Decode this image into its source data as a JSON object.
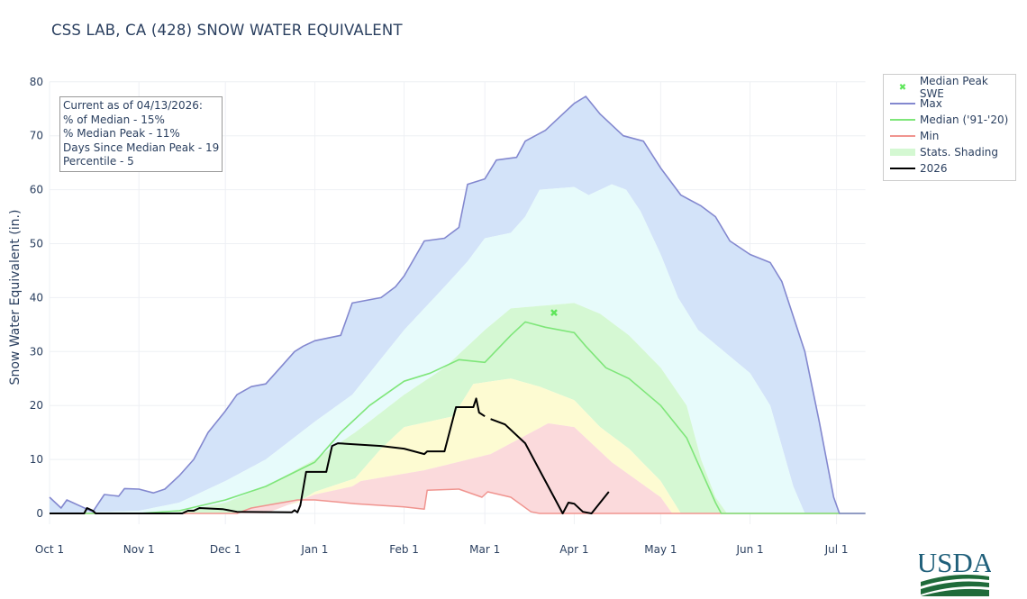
{
  "title": "CSS LAB, CA (428) SNOW WATER EQUIVALENT",
  "info_box": {
    "lines": [
      "Current as of 04/13/2026:",
      "% of Median - 15%",
      "% Median Peak - 11%",
      "Days Since Median Peak - 19",
      "Percentile - 5"
    ]
  },
  "legend": {
    "placement": "right",
    "items": [
      {
        "label": "Median Peak SWE",
        "color": "#5ee65a",
        "kind": "marker-x"
      },
      {
        "label": "Max",
        "color": "#8388cf",
        "kind": "line"
      },
      {
        "label": "Median ('91-'20)",
        "color": "#7fe67a",
        "kind": "line"
      },
      {
        "label": "Min",
        "color": "#f0948f",
        "kind": "line"
      },
      {
        "label": "Stats. Shading",
        "color": "#d4f8d2",
        "kind": "band"
      },
      {
        "label": "2026",
        "color": "#000000",
        "kind": "line"
      }
    ]
  },
  "logo": "USDA",
  "chart_data": {
    "type": "line",
    "title": "CSS LAB, CA (428) SNOW WATER EQUIVALENT",
    "xlabel": "",
    "ylabel": "Snow Water Equivalent (in.)",
    "x_range": [
      "10-01",
      "07-11"
    ],
    "ylim": [
      0,
      80
    ],
    "y_ticks": [
      0,
      10,
      20,
      30,
      40,
      50,
      60,
      70,
      80
    ],
    "x_ticks": [
      {
        "date": "10-01",
        "label": "Oct  1"
      },
      {
        "date": "11-01",
        "label": "Nov  1"
      },
      {
        "date": "12-01",
        "label": "Dec  1"
      },
      {
        "date": "01-01",
        "label": "Jan  1"
      },
      {
        "date": "02-01",
        "label": "Feb  1"
      },
      {
        "date": "03-01",
        "label": "Mar  1"
      },
      {
        "date": "04-01",
        "label": "Apr  1"
      },
      {
        "date": "05-01",
        "label": "May  1"
      },
      {
        "date": "06-01",
        "label": "Jun  1"
      },
      {
        "date": "07-01",
        "label": "Jul  1"
      }
    ],
    "grid": true,
    "band_colors": {
      "p90_max": "#d3e3f9",
      "p70_p90": "#e7fbfb",
      "p30_p70": "#d5f8d3",
      "p10_p30": "#fdfbd2",
      "min_p10": "#fbdadc"
    },
    "max": [
      [
        "10-01",
        3
      ],
      [
        "10-05",
        1
      ],
      [
        "10-07",
        2.5
      ],
      [
        "10-16",
        0.3
      ],
      [
        "10-20",
        3.5
      ],
      [
        "10-25",
        3.2
      ],
      [
        "10-27",
        4.6
      ],
      [
        "11-01",
        4.5
      ],
      [
        "11-06",
        3.8
      ],
      [
        "11-10",
        4.5
      ],
      [
        "11-15",
        7
      ],
      [
        "11-20",
        10
      ],
      [
        "11-25",
        15
      ],
      [
        "12-01",
        19
      ],
      [
        "12-05",
        22
      ],
      [
        "12-10",
        23.5
      ],
      [
        "12-15",
        24
      ],
      [
        "12-20",
        27
      ],
      [
        "12-25",
        30
      ],
      [
        "12-28",
        31
      ],
      [
        "01-01",
        32
      ],
      [
        "01-10",
        33
      ],
      [
        "01-14",
        39
      ],
      [
        "01-24",
        40
      ],
      [
        "01-29",
        42
      ],
      [
        "02-01",
        44
      ],
      [
        "02-08",
        50.5
      ],
      [
        "02-15",
        51
      ],
      [
        "02-20",
        53
      ],
      [
        "02-23",
        61
      ],
      [
        "03-01",
        62
      ],
      [
        "03-05",
        65.5
      ],
      [
        "03-12",
        66
      ],
      [
        "03-15",
        69
      ],
      [
        "03-22",
        71
      ],
      [
        "03-28",
        74
      ],
      [
        "04-01",
        76
      ],
      [
        "04-05",
        77.3
      ],
      [
        "04-10",
        74
      ],
      [
        "04-18",
        70
      ],
      [
        "04-25",
        69
      ],
      [
        "05-01",
        64
      ],
      [
        "05-08",
        59
      ],
      [
        "05-15",
        57
      ],
      [
        "05-20",
        55
      ],
      [
        "05-25",
        50.5
      ],
      [
        "06-01",
        48
      ],
      [
        "06-08",
        46.5
      ],
      [
        "06-12",
        43
      ],
      [
        "06-20",
        30
      ],
      [
        "06-25",
        17
      ],
      [
        "06-30",
        3
      ],
      [
        "07-02",
        0
      ],
      [
        "07-11",
        0
      ]
    ],
    "p90": [
      [
        "10-01",
        0
      ],
      [
        "11-01",
        0.5
      ],
      [
        "11-15",
        2
      ],
      [
        "12-01",
        6
      ],
      [
        "12-15",
        10
      ],
      [
        "01-01",
        17
      ],
      [
        "01-14",
        22
      ],
      [
        "02-01",
        34
      ],
      [
        "02-15",
        42
      ],
      [
        "02-23",
        46.7
      ],
      [
        "03-01",
        51
      ],
      [
        "03-10",
        52
      ],
      [
        "03-15",
        55
      ],
      [
        "03-20",
        60
      ],
      [
        "04-01",
        60.5
      ],
      [
        "04-06",
        59
      ],
      [
        "04-14",
        61
      ],
      [
        "04-19",
        60
      ],
      [
        "04-24",
        56
      ],
      [
        "05-01",
        48
      ],
      [
        "05-07",
        40
      ],
      [
        "05-14",
        34
      ],
      [
        "06-01",
        26
      ],
      [
        "06-08",
        20
      ],
      [
        "06-16",
        5
      ],
      [
        "06-20",
        0
      ],
      [
        "07-11",
        0
      ]
    ],
    "p70": [
      [
        "10-01",
        0
      ],
      [
        "11-10",
        0
      ],
      [
        "11-15",
        0.3
      ],
      [
        "12-01",
        2
      ],
      [
        "12-15",
        5
      ],
      [
        "01-01",
        10
      ],
      [
        "01-15",
        15
      ],
      [
        "02-01",
        22
      ],
      [
        "02-15",
        27
      ],
      [
        "03-01",
        34
      ],
      [
        "03-10",
        38
      ],
      [
        "04-01",
        39
      ],
      [
        "04-10",
        37
      ],
      [
        "04-20",
        33
      ],
      [
        "05-01",
        27
      ],
      [
        "05-10",
        20
      ],
      [
        "05-15",
        10
      ],
      [
        "05-20",
        3
      ],
      [
        "05-24",
        0
      ],
      [
        "07-11",
        0
      ]
    ],
    "median": [
      [
        "10-01",
        0
      ],
      [
        "11-01",
        0
      ],
      [
        "11-15",
        0.5
      ],
      [
        "12-01",
        2.5
      ],
      [
        "12-15",
        5
      ],
      [
        "01-01",
        9.5
      ],
      [
        "01-10",
        15
      ],
      [
        "01-20",
        20
      ],
      [
        "02-01",
        24.5
      ],
      [
        "02-10",
        26
      ],
      [
        "02-20",
        28.5
      ],
      [
        "03-01",
        28
      ],
      [
        "03-10",
        33
      ],
      [
        "03-15",
        35.5
      ],
      [
        "03-22",
        34.5
      ],
      [
        "04-01",
        33.5
      ],
      [
        "04-05",
        31
      ],
      [
        "04-12",
        27
      ],
      [
        "04-20",
        25
      ],
      [
        "05-01",
        20
      ],
      [
        "05-10",
        14
      ],
      [
        "05-15",
        8
      ],
      [
        "05-20",
        2
      ],
      [
        "05-22",
        0
      ],
      [
        "07-11",
        0
      ]
    ],
    "p30": [
      [
        "10-01",
        0
      ],
      [
        "12-10",
        0
      ],
      [
        "12-26",
        2
      ],
      [
        "01-01",
        4
      ],
      [
        "01-15",
        6.5
      ],
      [
        "01-24",
        12
      ],
      [
        "02-01",
        16
      ],
      [
        "02-18",
        18
      ],
      [
        "02-25",
        24
      ],
      [
        "03-10",
        25
      ],
      [
        "03-20",
        23.5
      ],
      [
        "04-01",
        21
      ],
      [
        "04-10",
        16
      ],
      [
        "04-20",
        12
      ],
      [
        "05-01",
        6
      ],
      [
        "05-08",
        0
      ],
      [
        "07-11",
        0
      ]
    ],
    "p10": [
      [
        "10-01",
        0
      ],
      [
        "12-15",
        0
      ],
      [
        "01-01",
        3.5
      ],
      [
        "01-14",
        5
      ],
      [
        "01-17",
        6
      ],
      [
        "02-08",
        8
      ],
      [
        "03-03",
        11
      ],
      [
        "03-23",
        16.7
      ],
      [
        "04-01",
        16
      ],
      [
        "04-14",
        9.5
      ],
      [
        "05-01",
        3
      ],
      [
        "05-05",
        0
      ],
      [
        "07-11",
        0
      ]
    ],
    "min": [
      [
        "10-01",
        0
      ],
      [
        "12-05",
        0
      ],
      [
        "12-10",
        1
      ],
      [
        "12-26",
        2.5
      ],
      [
        "01-01",
        2.5
      ],
      [
        "01-15",
        1.8
      ],
      [
        "02-01",
        1.2
      ],
      [
        "02-08",
        0.8
      ],
      [
        "02-09",
        4.3
      ],
      [
        "02-20",
        4.5
      ],
      [
        "02-28",
        3
      ],
      [
        "03-02",
        4
      ],
      [
        "03-10",
        3
      ],
      [
        "03-17",
        0.3
      ],
      [
        "03-20",
        0
      ],
      [
        "07-11",
        0
      ]
    ],
    "current_2026": [
      [
        "10-01",
        0
      ],
      [
        "10-13",
        0
      ],
      [
        "10-14",
        1
      ],
      [
        "10-16",
        0.5
      ],
      [
        "10-17",
        0
      ],
      [
        "11-16",
        0
      ],
      [
        "11-18",
        0.5
      ],
      [
        "11-20",
        0.5
      ],
      [
        "11-22",
        1
      ],
      [
        "11-30",
        0.8
      ],
      [
        "12-05",
        0.3
      ],
      [
        "12-24",
        0.2
      ],
      [
        "12-25",
        0.6
      ],
      [
        "12-26",
        0.2
      ],
      [
        "12-27",
        1.5
      ],
      [
        "12-29",
        7.7
      ],
      [
        "01-05",
        7.7
      ],
      [
        "01-07",
        12.5
      ],
      [
        "01-09",
        13
      ],
      [
        "01-24",
        12.5
      ],
      [
        "02-01",
        12
      ],
      [
        "02-08",
        11
      ],
      [
        "02-09",
        11.5
      ],
      [
        "02-15",
        11.5
      ],
      [
        "02-19",
        19.7
      ],
      [
        "02-25",
        19.7
      ],
      [
        "02-26",
        21.3
      ],
      [
        "02-27",
        18.7
      ],
      [
        "03-01",
        18
      ],
      null,
      [
        "03-03",
        17.5
      ],
      [
        "03-08",
        16.5
      ],
      [
        "03-15",
        13
      ],
      [
        "03-20",
        8
      ],
      [
        "03-25",
        3
      ],
      [
        "03-28",
        0
      ],
      [
        "03-30",
        2
      ],
      [
        "04-01",
        1.8
      ],
      [
        "04-04",
        0.3
      ],
      [
        "04-07",
        0
      ],
      [
        "04-13",
        4
      ]
    ],
    "median_peak": {
      "date": "03-25",
      "value": 37.2
    }
  }
}
